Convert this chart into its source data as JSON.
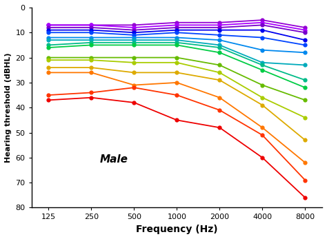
{
  "xlabel": "Frequency (Hz)",
  "ylabel": "Hearing threshold (dBHL)",
  "annotation": "Male",
  "frequencies": [
    125,
    250,
    500,
    1000,
    2000,
    4000,
    8000
  ],
  "ylim": [
    80,
    0
  ],
  "yticks": [
    0,
    10,
    20,
    30,
    40,
    50,
    60,
    70,
    80
  ],
  "xtick_labels": [
    "125",
    "250",
    "500",
    "1000",
    "2000",
    "4000",
    "8000"
  ],
  "lines": [
    {
      "color": "#9400D3",
      "values": [
        7,
        7,
        7,
        6,
        6,
        5,
        8
      ]
    },
    {
      "color": "#AA00FF",
      "values": [
        7,
        7,
        8,
        7,
        7,
        6,
        9
      ]
    },
    {
      "color": "#7700CC",
      "values": [
        8,
        8,
        9,
        8,
        8,
        7,
        10
      ]
    },
    {
      "color": "#0000EE",
      "values": [
        9,
        9,
        10,
        9,
        9,
        9,
        13
      ]
    },
    {
      "color": "#0044FF",
      "values": [
        10,
        10,
        11,
        10,
        11,
        12,
        15
      ]
    },
    {
      "color": "#0088EE",
      "values": [
        12,
        12,
        12,
        12,
        13,
        17,
        18
      ]
    },
    {
      "color": "#00AABB",
      "values": [
        13,
        13,
        13,
        13,
        15,
        22,
        23
      ]
    },
    {
      "color": "#00BB88",
      "values": [
        15,
        14,
        14,
        14,
        16,
        23,
        29
      ]
    },
    {
      "color": "#00CC44",
      "values": [
        16,
        15,
        15,
        15,
        18,
        25,
        32
      ]
    },
    {
      "color": "#66BB00",
      "values": [
        20,
        20,
        20,
        20,
        23,
        31,
        37
      ]
    },
    {
      "color": "#AACC00",
      "values": [
        21,
        21,
        22,
        22,
        26,
        36,
        44
      ]
    },
    {
      "color": "#DDAA00",
      "values": [
        24,
        24,
        26,
        26,
        29,
        39,
        53
      ]
    },
    {
      "color": "#FF7700",
      "values": [
        26,
        26,
        31,
        30,
        36,
        48,
        62
      ]
    },
    {
      "color": "#FF3300",
      "values": [
        35,
        34,
        32,
        35,
        41,
        51,
        69
      ]
    },
    {
      "color": "#EE0000",
      "values": [
        37,
        36,
        38,
        45,
        48,
        60,
        76
      ]
    }
  ],
  "background_color": "#ffffff",
  "marker": "o",
  "markersize": 3.5,
  "linewidth": 1.3
}
